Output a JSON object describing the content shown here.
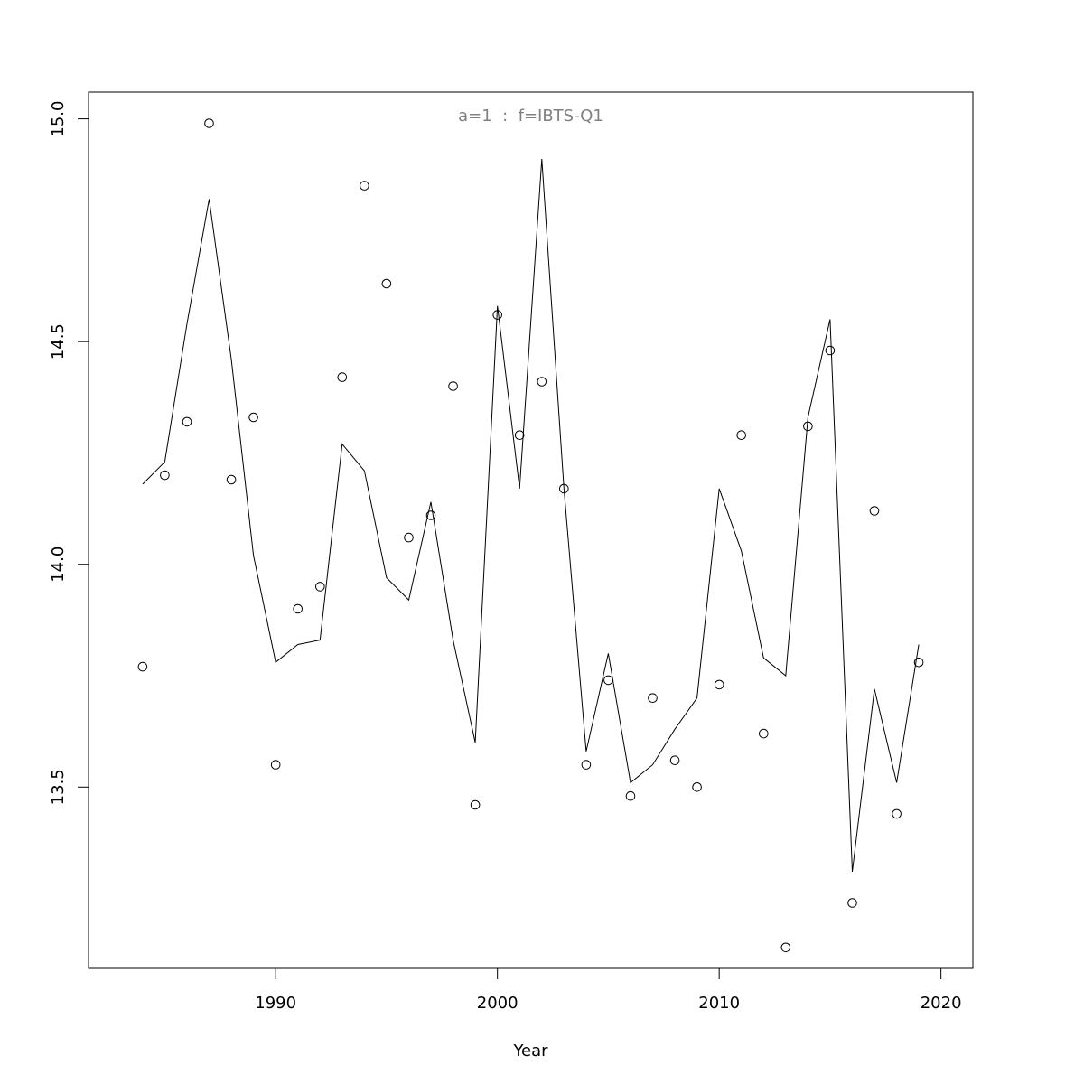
{
  "chart_data": {
    "type": "line",
    "title": "a=1  :  f=IBTS-Q1",
    "title_color": "#808080",
    "xlabel": "Year",
    "ylabel": "",
    "xlim": [
      1981.56,
      2021.44
    ],
    "ylim": [
      13.093,
      15.06
    ],
    "x_ticks": [
      1990,
      2000,
      2010,
      2020
    ],
    "y_ticks": [
      13.5,
      14.0,
      14.5,
      15.0
    ],
    "x_tick_labels": [
      "1990",
      "2000",
      "2010",
      "2020"
    ],
    "y_tick_labels": [
      "13.5",
      "14.0",
      "14.5",
      "15.0"
    ],
    "grid": false,
    "series": [
      {
        "style": "points",
        "color": "#000000",
        "x": [
          1984,
          1985,
          1986,
          1987,
          1988,
          1989,
          1990,
          1991,
          1992,
          1993,
          1994,
          1995,
          1996,
          1997,
          1998,
          1999,
          2000,
          2001,
          2002,
          2003,
          2004,
          2005,
          2006,
          2007,
          2008,
          2009,
          2010,
          2011,
          2012,
          2013,
          2014,
          2015,
          2016,
          2017,
          2018,
          2019
        ],
        "y": [
          13.77,
          14.2,
          14.32,
          14.99,
          14.19,
          14.33,
          13.55,
          13.9,
          13.95,
          14.42,
          14.85,
          14.63,
          14.06,
          14.11,
          14.4,
          13.46,
          14.56,
          14.29,
          14.41,
          14.17,
          13.55,
          13.74,
          13.48,
          13.7,
          13.56,
          13.5,
          13.73,
          14.29,
          13.62,
          13.14,
          14.31,
          14.48,
          13.24,
          14.12,
          13.44,
          13.78
        ]
      },
      {
        "style": "line",
        "color": "#000000",
        "x": [
          1984,
          1985,
          1986,
          1987,
          1988,
          1989,
          1990,
          1991,
          1992,
          1993,
          1994,
          1995,
          1996,
          1997,
          1998,
          1999,
          2000,
          2001,
          2002,
          2003,
          2004,
          2005,
          2006,
          2007,
          2008,
          2009,
          2010,
          2011,
          2012,
          2013,
          2014,
          2015,
          2016,
          2017,
          2018,
          2019
        ],
        "y": [
          14.18,
          14.23,
          14.54,
          14.82,
          14.46,
          14.02,
          13.78,
          13.82,
          13.83,
          14.27,
          14.21,
          13.97,
          13.92,
          14.14,
          13.83,
          13.6,
          14.58,
          14.17,
          14.91,
          14.17,
          13.58,
          13.8,
          13.51,
          13.55,
          13.63,
          13.7,
          14.17,
          14.03,
          13.79,
          13.75,
          14.33,
          14.55,
          13.31,
          13.72,
          13.51,
          13.82
        ]
      }
    ]
  }
}
